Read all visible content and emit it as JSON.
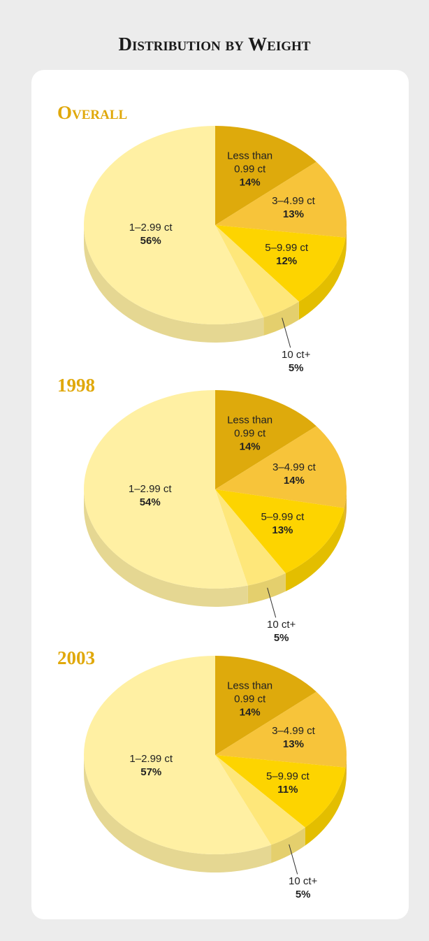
{
  "title": "Distribution by Weight",
  "chart_data": [
    {
      "type": "pie",
      "title": "Overall",
      "categories": [
        "Less than 0.99 ct",
        "3–4.99 ct",
        "5–9.99 ct",
        "10 ct+",
        "1–2.99 ct"
      ],
      "values": [
        14,
        13,
        12,
        5,
        56
      ],
      "value_labels": [
        "14%",
        "13%",
        "12%",
        "5%",
        "56%"
      ],
      "colors": [
        "#deaa0c",
        "#f7c43a",
        "#fdd400",
        "#fee77a",
        "#fff0a3"
      ]
    },
    {
      "type": "pie",
      "title": "1998",
      "categories": [
        "Less than 0.99 ct",
        "3–4.99 ct",
        "5–9.99 ct",
        "10 ct+",
        "1–2.99 ct"
      ],
      "values": [
        14,
        14,
        13,
        5,
        54
      ],
      "value_labels": [
        "14%",
        "14%",
        "13%",
        "5%",
        "54%"
      ],
      "colors": [
        "#deaa0c",
        "#f7c43a",
        "#fdd400",
        "#fee77a",
        "#fff0a3"
      ]
    },
    {
      "type": "pie",
      "title": "2003",
      "categories": [
        "Less than 0.99 ct",
        "3–4.99 ct",
        "5–9.99 ct",
        "10 ct+",
        "1–2.99 ct"
      ],
      "values": [
        14,
        13,
        11,
        5,
        57
      ],
      "value_labels": [
        "14%",
        "13%",
        "11%",
        "5%",
        "57%"
      ],
      "colors": [
        "#deaa0c",
        "#f7c43a",
        "#fdd400",
        "#fee77a",
        "#fff0a3"
      ]
    }
  ]
}
